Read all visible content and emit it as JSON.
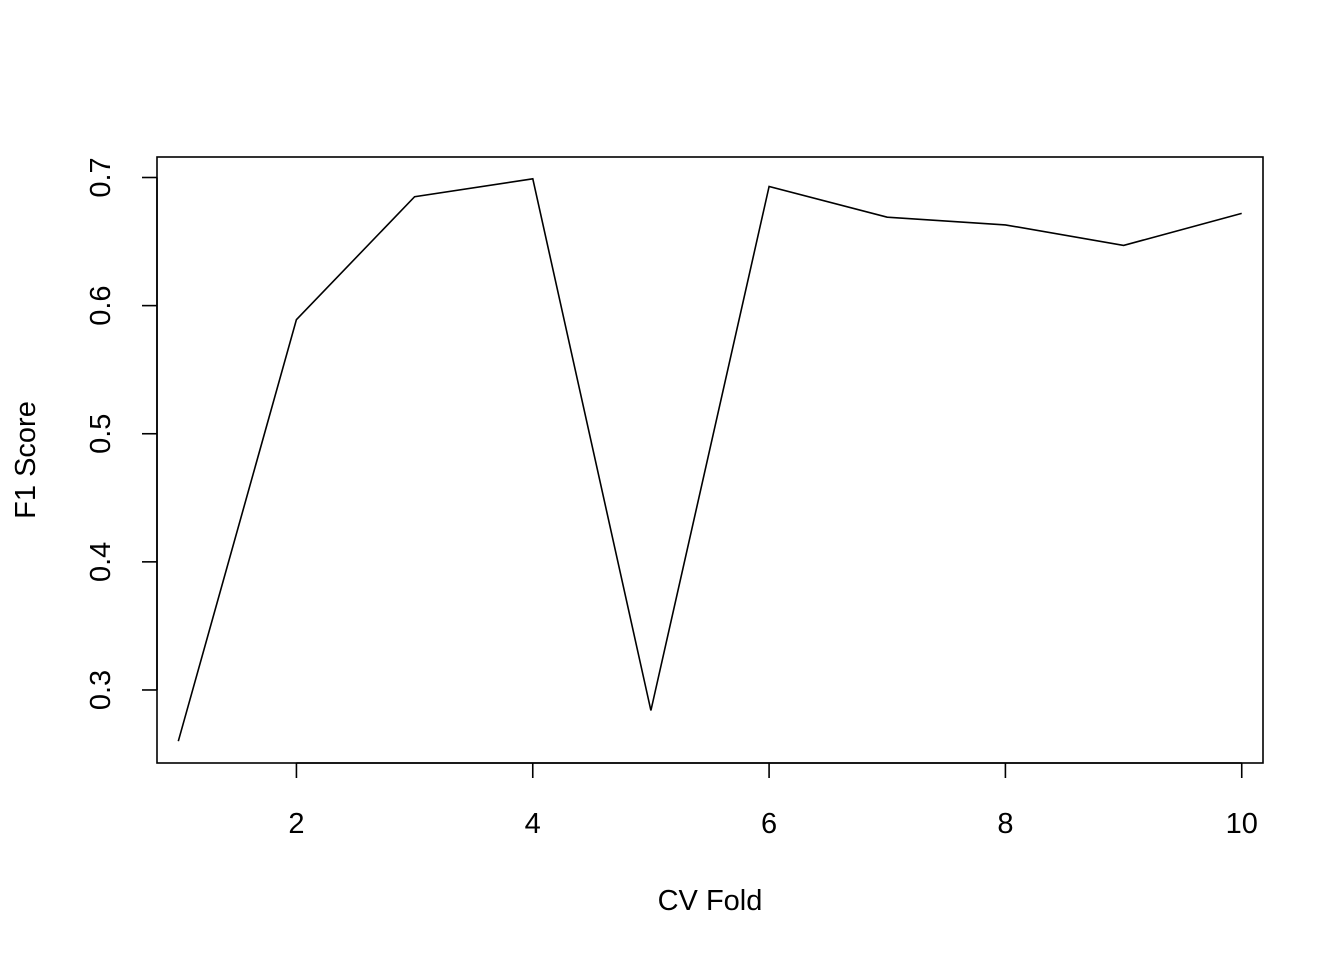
{
  "chart_data": {
    "type": "line",
    "title": "",
    "xlabel": "CV Fold",
    "ylabel": "F1 Score",
    "x": [
      1,
      2,
      3,
      4,
      5,
      6,
      7,
      8,
      9,
      10
    ],
    "series": [
      {
        "values": [
          0.26,
          0.589,
          0.685,
          0.699,
          0.284,
          0.693,
          0.669,
          0.663,
          0.647,
          0.672
        ]
      }
    ],
    "xlim": [
      0.82,
      10.18
    ],
    "ylim": [
      0.243,
      0.716
    ],
    "xticks": [
      2,
      4,
      6,
      8,
      10
    ],
    "xtick_labels": [
      "2",
      "4",
      "6",
      "8",
      "10"
    ],
    "yticks": [
      0.3,
      0.4,
      0.5,
      0.6,
      0.7
    ],
    "ytick_labels": [
      "0.3",
      "0.4",
      "0.5",
      "0.6",
      "0.7"
    ],
    "grid": false,
    "legend": "none",
    "line_color": "#000000"
  }
}
